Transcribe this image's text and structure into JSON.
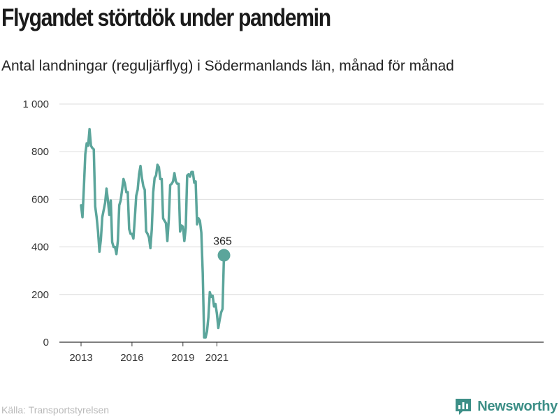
{
  "header": {
    "title": "Flygandet störtdök under pandemin",
    "subtitle": "Antal landningar (reguljärflyg) i Södermanlands län, månad för månad"
  },
  "footer": {
    "source": "Källa: Transportstyrelsen",
    "brand": "Newsworthy"
  },
  "colors": {
    "line": "#5ba59b",
    "grid": "#dddddd",
    "axis": "#333333",
    "brand": "#3d8f87"
  },
  "icons": {
    "brand_logo": "newsworthy-logo-icon"
  },
  "chart_data": {
    "type": "line",
    "title": "Flygandet störtdök under pandemin",
    "subtitle": "Antal landningar (reguljärflyg) i Södermanlands län, månad för månad",
    "x_start": "2013-01",
    "ylim": [
      0,
      1000
    ],
    "yticks": [
      0,
      200,
      400,
      600,
      800,
      1000
    ],
    "ytick_labels": [
      "0",
      "200",
      "400",
      "600",
      "800",
      "1 000"
    ],
    "xticks": [
      "2013-01",
      "2016-01",
      "2019-01",
      "2021-01"
    ],
    "xtick_labels": [
      "2013",
      "2016",
      "2019",
      "2021"
    ],
    "grid": true,
    "last_value_label": "365",
    "x": [
      "2013-01",
      "2013-02",
      "2013-03",
      "2013-04",
      "2013-05",
      "2013-06",
      "2013-07",
      "2013-08",
      "2013-09",
      "2013-10",
      "2013-11",
      "2013-12",
      "2014-01",
      "2014-02",
      "2014-03",
      "2014-04",
      "2014-05",
      "2014-06",
      "2014-07",
      "2014-08",
      "2014-09",
      "2014-10",
      "2014-11",
      "2014-12",
      "2015-01",
      "2015-02",
      "2015-03",
      "2015-04",
      "2015-05",
      "2015-06",
      "2015-07",
      "2015-08",
      "2015-09",
      "2015-10",
      "2015-11",
      "2015-12",
      "2016-01",
      "2016-02",
      "2016-03",
      "2016-04",
      "2016-05",
      "2016-06",
      "2016-07",
      "2016-08",
      "2016-09",
      "2016-10",
      "2016-11",
      "2016-12",
      "2017-01",
      "2017-02",
      "2017-03",
      "2017-04",
      "2017-05",
      "2017-06",
      "2017-07",
      "2017-08",
      "2017-09",
      "2017-10",
      "2017-11",
      "2017-12",
      "2018-01",
      "2018-02",
      "2018-03",
      "2018-04",
      "2018-05",
      "2018-06",
      "2018-07",
      "2018-08",
      "2018-09",
      "2018-10",
      "2018-11",
      "2018-12",
      "2019-01",
      "2019-02",
      "2019-03",
      "2019-04",
      "2019-05",
      "2019-06",
      "2019-07",
      "2019-08",
      "2019-09",
      "2019-10",
      "2019-11",
      "2019-12",
      "2020-01",
      "2020-02",
      "2020-03",
      "2020-04",
      "2020-05",
      "2020-06",
      "2020-07",
      "2020-08",
      "2020-09",
      "2020-10",
      "2020-11",
      "2020-12",
      "2021-01",
      "2021-02",
      "2021-03",
      "2021-04",
      "2021-05",
      "2021-06"
    ],
    "series": [
      {
        "values": [
          575,
          525,
          650,
          790,
          835,
          825,
          895,
          825,
          815,
          810,
          570,
          525,
          465,
          380,
          430,
          525,
          555,
          585,
          645,
          595,
          535,
          595,
          420,
          400,
          400,
          370,
          425,
          575,
          595,
          640,
          685,
          665,
          630,
          630,
          475,
          455,
          455,
          435,
          520,
          615,
          640,
          705,
          740,
          690,
          655,
          640,
          465,
          455,
          440,
          395,
          475,
          630,
          690,
          700,
          745,
          735,
          685,
          685,
          520,
          510,
          500,
          425,
          515,
          660,
          665,
          675,
          710,
          675,
          665,
          665,
          465,
          490,
          485,
          425,
          480,
          700,
          705,
          695,
          715,
          715,
          670,
          675,
          495,
          520,
          510,
          460,
          290,
          20,
          20,
          45,
          105,
          210,
          190,
          195,
          150,
          160,
          120,
          60,
          95,
          125,
          140,
          365
        ]
      }
    ]
  }
}
